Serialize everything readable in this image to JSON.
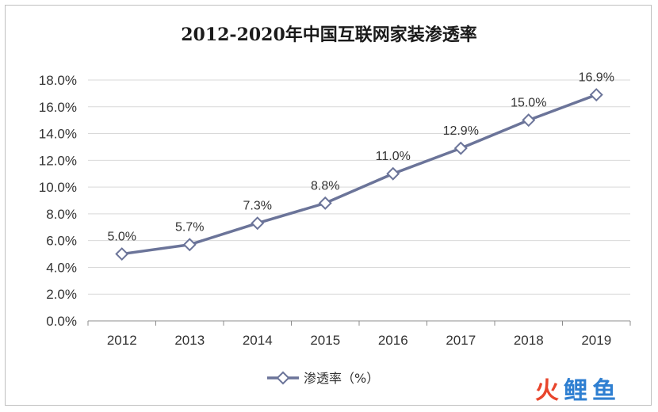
{
  "chart_data": {
    "type": "line",
    "title": "2012-2020年中国互联网家装渗透率",
    "xlabel": "",
    "ylabel": "",
    "categories": [
      "2012",
      "2013",
      "2014",
      "2015",
      "2016",
      "2017",
      "2018",
      "2019"
    ],
    "series": [
      {
        "name": "渗透率（%）",
        "values": [
          5.0,
          5.7,
          7.3,
          8.8,
          11.0,
          12.9,
          15.0,
          16.9
        ],
        "labels": [
          "5.0%",
          "5.7%",
          "7.3%",
          "8.8%",
          "11.0%",
          "12.9%",
          "15.0%",
          "16.9%"
        ],
        "color": "#6b7499"
      }
    ],
    "ylim": [
      0,
      18
    ],
    "yticks": [
      0,
      2,
      4,
      6,
      8,
      10,
      12,
      14,
      16,
      18
    ],
    "ytick_labels": [
      "0.0%",
      "2.0%",
      "4.0%",
      "6.0%",
      "8.0%",
      "10.0%",
      "12.0%",
      "14.0%",
      "16.0%",
      "18.0%"
    ],
    "grid": true,
    "legend_position": "bottom"
  },
  "watermark": {
    "text": "火鲤鱼",
    "colors": [
      "#e8452c",
      "#2f7fd1",
      "#2f7fd1"
    ]
  }
}
